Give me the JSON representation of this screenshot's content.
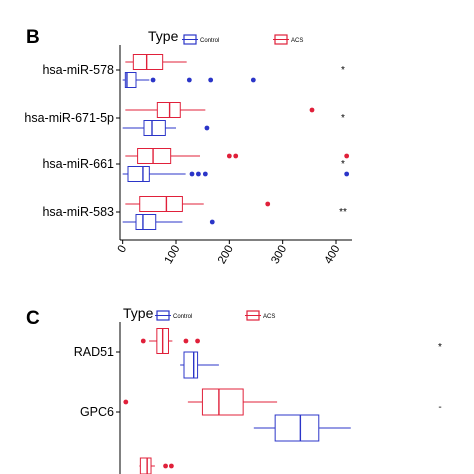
{
  "colors": {
    "control": "#2b35c8",
    "acs": "#e0203a",
    "axis": "#000000",
    "background": "#ffffff"
  },
  "chart_data": [
    {
      "type": "boxplot",
      "panel": "B",
      "orientation": "horizontal",
      "legend": {
        "title": "Type",
        "placement": "top",
        "entries": [
          "Control",
          "ACS"
        ]
      },
      "categories": [
        "hsa-miR-578",
        "hsa-miR-671-5p",
        "hsa-miR-661",
        "hsa-miR-583"
      ],
      "x_ticks": [
        "0",
        "100",
        "200",
        "300",
        "400"
      ],
      "xlim": [
        -5,
        430
      ],
      "grid": false,
      "significance": [
        "*",
        "*",
        "*",
        "**"
      ],
      "series": [
        {
          "name": "ACS",
          "boxes": [
            {
              "whislo": 5,
              "q1": 20,
              "med": 45,
              "q3": 75,
              "whishi": 120,
              "outliers": []
            },
            {
              "whislo": 5,
              "q1": 65,
              "med": 88,
              "q3": 108,
              "whishi": 155,
              "outliers": [
                355
              ]
            },
            {
              "whislo": 5,
              "q1": 28,
              "med": 57,
              "q3": 90,
              "whishi": 145,
              "outliers": [
                200,
                212,
                420
              ]
            },
            {
              "whislo": 5,
              "q1": 32,
              "med": 82,
              "q3": 112,
              "whishi": 152,
              "outliers": [
                272
              ]
            }
          ]
        },
        {
          "name": "Control",
          "boxes": [
            {
              "whislo": 0,
              "q1": 5,
              "med": 8,
              "q3": 25,
              "whishi": 50,
              "outliers": [
                57,
                125,
                165,
                245
              ]
            },
            {
              "whislo": 0,
              "q1": 40,
              "med": 55,
              "q3": 80,
              "whishi": 100,
              "outliers": [
                158
              ]
            },
            {
              "whislo": 0,
              "q1": 10,
              "med": 38,
              "q3": 50,
              "whishi": 118,
              "outliers": [
                130,
                142,
                155,
                420
              ]
            },
            {
              "whislo": 0,
              "q1": 25,
              "med": 38,
              "q3": 62,
              "whishi": 112,
              "outliers": [
                168
              ]
            }
          ]
        }
      ]
    },
    {
      "type": "boxplot",
      "panel": "C",
      "orientation": "horizontal",
      "legend": {
        "title": "Type",
        "placement": "top",
        "entries": [
          "Control",
          "ACS"
        ]
      },
      "categories": [
        "RAD51",
        "GPC6"
      ],
      "xlim": [
        -20,
        310
      ],
      "grid": false,
      "significance": [
        "*",
        "-"
      ],
      "series": [
        {
          "name": "ACS",
          "boxes": [
            {
              "whislo": 10,
              "q1": 18,
              "med": 24,
              "q3": 30,
              "whishi": 34,
              "outliers": [
                4,
                48,
                60
              ]
            },
            {
              "whislo": 50,
              "q1": 65,
              "med": 82,
              "q3": 107,
              "whishi": 142,
              "outliers": [
                -14
              ]
            }
          ]
        },
        {
          "name": "Control",
          "boxes": [
            {
              "whislo": 42,
              "q1": 46,
              "med": 56,
              "q3": 60,
              "whishi": 82,
              "outliers": []
            },
            {
              "whislo": 118,
              "q1": 140,
              "med": 166,
              "q3": 185,
              "whishi": 218,
              "outliers": []
            }
          ]
        },
        {
          "name": "ACS",
          "boxes": [
            {
              "whislo": 0,
              "q1": 1,
              "med": 8,
              "q3": 12,
              "whishi": 16,
              "outliers": [
                27,
                33
              ]
            }
          ]
        }
      ]
    }
  ]
}
